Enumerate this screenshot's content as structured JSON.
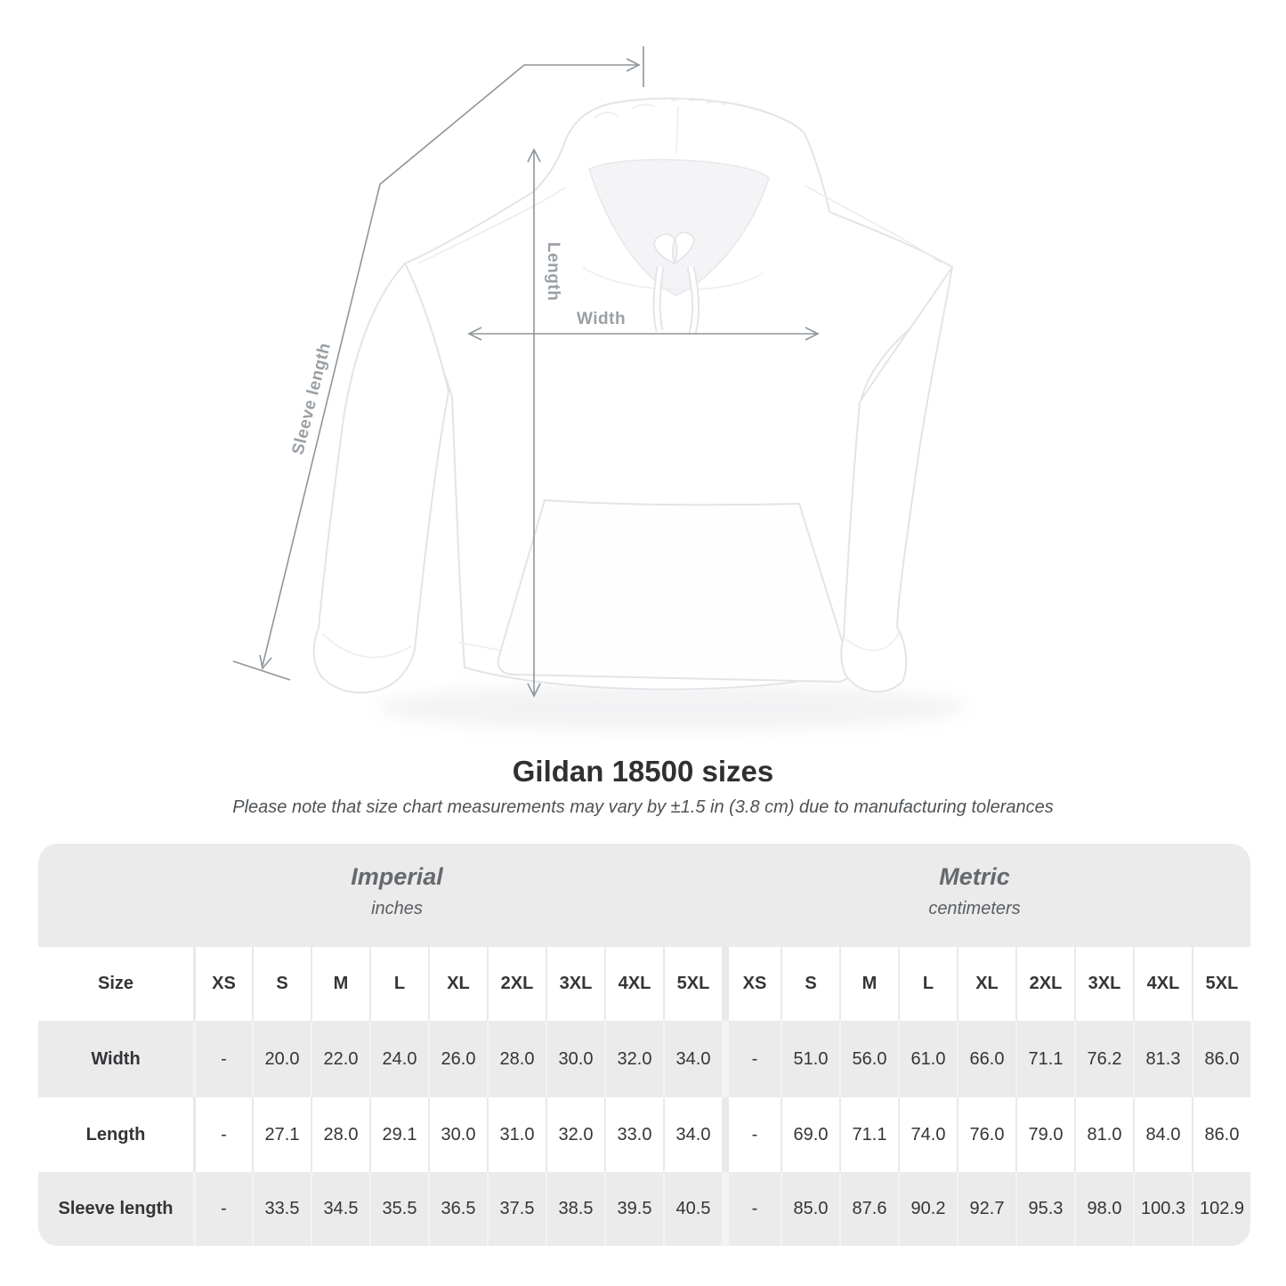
{
  "figure": {
    "labels": {
      "length": "Length",
      "width": "Width",
      "sleeve_length": "Sleeve length"
    }
  },
  "heading": {
    "title": "Gildan 18500 sizes",
    "note": "Please note that size chart measurements may vary by ±1.5 in (3.8 cm) due to manufacturing tolerances"
  },
  "size_chart": {
    "size_label": "Size",
    "unit_groups": [
      {
        "name": "Imperial",
        "unit": "inches"
      },
      {
        "name": "Metric",
        "unit": "centimeters"
      }
    ],
    "sizes": [
      "XS",
      "S",
      "M",
      "L",
      "XL",
      "2XL",
      "3XL",
      "4XL",
      "5XL"
    ],
    "rows": [
      {
        "label": "Width",
        "imperial": [
          "-",
          "20.0",
          "22.0",
          "24.0",
          "26.0",
          "28.0",
          "30.0",
          "32.0",
          "34.0"
        ],
        "metric": [
          "-",
          "51.0",
          "56.0",
          "61.0",
          "66.0",
          "71.1",
          "76.2",
          "81.3",
          "86.0"
        ]
      },
      {
        "label": "Length",
        "imperial": [
          "-",
          "27.1",
          "28.0",
          "29.1",
          "30.0",
          "31.0",
          "32.0",
          "33.0",
          "34.0"
        ],
        "metric": [
          "-",
          "69.0",
          "71.1",
          "74.0",
          "76.0",
          "79.0",
          "81.0",
          "84.0",
          "86.0"
        ]
      },
      {
        "label": "Sleeve length",
        "imperial": [
          "-",
          "33.5",
          "34.5",
          "35.5",
          "36.5",
          "37.5",
          "38.5",
          "39.5",
          "40.5"
        ],
        "metric": [
          "-",
          "85.0",
          "87.6",
          "90.2",
          "92.7",
          "95.3",
          "98.0",
          "100.3",
          "102.9"
        ]
      }
    ]
  },
  "colors": {
    "page_background": "#ffffff",
    "measure_line": "#8f959a",
    "measure_label": "#9aa0a5",
    "table_gray_row": "#ebebeb",
    "table_white_row": "#ffffff",
    "header_text": "#54585c",
    "value_text": "#333538",
    "title_text": "#2e3032",
    "note_text": "#4e5256"
  }
}
